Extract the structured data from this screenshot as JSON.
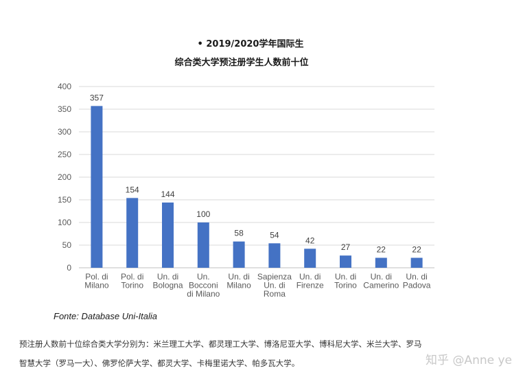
{
  "chart_data": {
    "type": "bar",
    "title": "• 2019/2020学年国际生",
    "subtitle": "综合类大学预注册学生人数前十位",
    "categories": [
      [
        "Pol. di",
        "Milano"
      ],
      [
        "Pol. di",
        "Torino"
      ],
      [
        "Un. di",
        "Bologna"
      ],
      [
        "Un.",
        "Bocconi",
        "di Milano"
      ],
      [
        "Un. di",
        "Milano"
      ],
      [
        "Sapienza",
        "Un. di",
        "Roma"
      ],
      [
        "Un. di",
        "Firenze"
      ],
      [
        "Un. di",
        "Torino"
      ],
      [
        "Un. di",
        "Camerino"
      ],
      [
        "Un. di",
        "Padova"
      ]
    ],
    "values": [
      357,
      154,
      144,
      100,
      58,
      54,
      42,
      27,
      22,
      22
    ],
    "ylim": [
      0,
      400
    ],
    "yticks": [
      0,
      50,
      100,
      150,
      200,
      250,
      300,
      350,
      400
    ],
    "grid": true,
    "bar_color": "#4472C4"
  },
  "source": "Fonte: Database Uni-Italia",
  "note": {
    "line1": "预注册人数前十位综合类大学分别为：米兰理工大学、都灵理工大学、博洛尼亚大学、博科尼大学、米兰大学、罗马",
    "line2": "智慧大学（罗马一大）、佛罗伦萨大学、都灵大学、卡梅里诺大学、帕多瓦大学。"
  },
  "watermark": "知乎 @Anne ye"
}
